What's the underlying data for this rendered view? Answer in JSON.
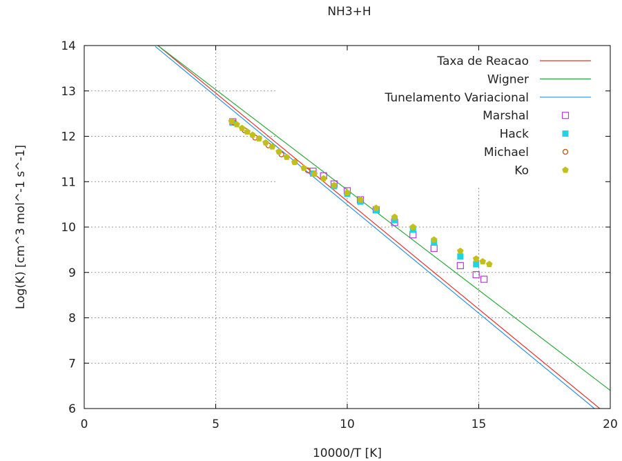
{
  "chart_data": {
    "type": "scatter",
    "title": "NH3+H",
    "xlabel": "10000/T [K]",
    "ylabel": "Log(K) [cm^3 mol^-1 s^-1]",
    "xlim": [
      0,
      20
    ],
    "ylim": [
      6,
      14
    ],
    "xticks": [
      "0",
      "5",
      "10",
      "15",
      "20"
    ],
    "yticks": [
      "6",
      "7",
      "8",
      "9",
      "10",
      "11",
      "12",
      "13",
      "14"
    ],
    "grid": true,
    "legend_position": "top-right",
    "series": [
      {
        "name": "Taxa de Reacao",
        "kind": "line",
        "color": "#e8302c",
        "x": [
          2.8,
          19.6
        ],
        "y": [
          14.0,
          6.0
        ]
      },
      {
        "name": "Wigner",
        "kind": "line",
        "color": "#2aa83a",
        "x": [
          2.8,
          20.0
        ],
        "y": [
          14.0,
          6.4
        ]
      },
      {
        "name": "Tunelamento Variacional",
        "kind": "line",
        "color": "#2b8fdf",
        "x": [
          2.7,
          19.4
        ],
        "y": [
          13.98,
          6.0
        ]
      },
      {
        "name": "Marshal",
        "kind": "marker",
        "marker": "open-square",
        "color": "#b23cde",
        "x": [
          5.65,
          8.7,
          9.1,
          9.5,
          10.0,
          10.5,
          11.1,
          11.8,
          12.5,
          13.3,
          14.3,
          14.9,
          15.2
        ],
        "y": [
          12.32,
          11.23,
          11.13,
          10.95,
          10.8,
          10.6,
          10.38,
          10.1,
          9.83,
          9.53,
          9.15,
          8.95,
          8.85
        ]
      },
      {
        "name": "Hack",
        "kind": "marker",
        "marker": "filled-square",
        "color": "#22d3e6",
        "x": [
          5.65,
          8.7,
          9.5,
          10.0,
          10.5,
          11.1,
          11.8,
          12.5,
          13.3,
          14.3,
          14.9
        ],
        "y": [
          12.3,
          11.18,
          10.9,
          10.73,
          10.56,
          10.37,
          10.15,
          9.94,
          9.66,
          9.35,
          9.18
        ]
      },
      {
        "name": "Michael",
        "kind": "marker",
        "marker": "open-circle",
        "color": "#c85a1e",
        "x": [
          5.7,
          6.1,
          6.5,
          7.0,
          7.5,
          8.0,
          8.5
        ],
        "y": [
          12.3,
          12.13,
          11.97,
          11.8,
          11.6,
          11.43,
          11.25
        ]
      },
      {
        "name": "Ko",
        "kind": "marker",
        "marker": "filled-pentagon",
        "color": "#c2be1a",
        "x": [
          5.6,
          5.8,
          6.0,
          6.2,
          6.4,
          6.65,
          6.9,
          7.15,
          7.4,
          7.7,
          8.0,
          8.35,
          8.75,
          9.1,
          9.5,
          10.0,
          10.5,
          11.1,
          11.8,
          12.5,
          13.3,
          14.3,
          14.9,
          15.15,
          15.4
        ],
        "y": [
          12.33,
          12.26,
          12.18,
          12.1,
          12.03,
          11.95,
          11.86,
          11.77,
          11.66,
          11.54,
          11.43,
          11.3,
          11.17,
          11.07,
          10.92,
          10.76,
          10.6,
          10.42,
          10.22,
          10.0,
          9.72,
          9.47,
          9.3,
          9.24,
          9.18
        ]
      }
    ]
  }
}
